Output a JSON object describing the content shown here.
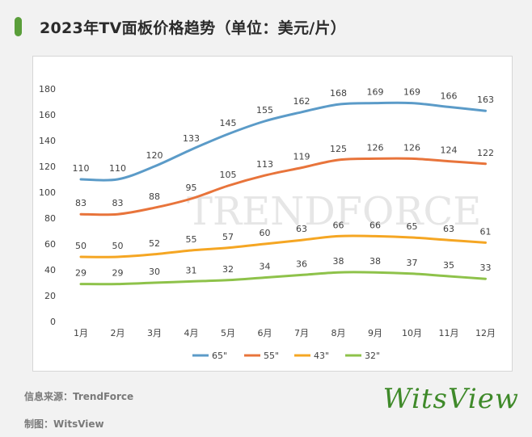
{
  "title": "2023年TV面板价格趋势（单位：美元/片）",
  "watermark": "TRENDFORCE",
  "source": "信息来源：TrendForce",
  "maker": "制图：WitsView",
  "logo": "WitsView",
  "chart_data": {
    "type": "line",
    "categories": [
      "1月",
      "2月",
      "3月",
      "4月",
      "5月",
      "6月",
      "7月",
      "8月",
      "9月",
      "10月",
      "11月",
      "12月"
    ],
    "ylim": [
      0,
      180
    ],
    "yticks": [
      0,
      20,
      40,
      60,
      80,
      100,
      120,
      140,
      160,
      180
    ],
    "legend_position": "bottom",
    "grid": false,
    "series": [
      {
        "name": "65\"",
        "color": "#5b9bc8",
        "values": [
          110,
          110,
          120,
          133,
          145,
          155,
          162,
          168,
          169,
          169,
          166,
          163
        ]
      },
      {
        "name": "55\"",
        "color": "#e8743b",
        "values": [
          83,
          83,
          88,
          95,
          105,
          113,
          119,
          125,
          126,
          126,
          124,
          122
        ]
      },
      {
        "name": "43\"",
        "color": "#f5a623",
        "values": [
          50,
          50,
          52,
          55,
          57,
          60,
          63,
          66,
          66,
          65,
          63,
          61
        ]
      },
      {
        "name": "32\"",
        "color": "#8ec24a",
        "values": [
          29,
          29,
          30,
          31,
          32,
          34,
          36,
          38,
          38,
          37,
          35,
          33
        ]
      }
    ]
  }
}
